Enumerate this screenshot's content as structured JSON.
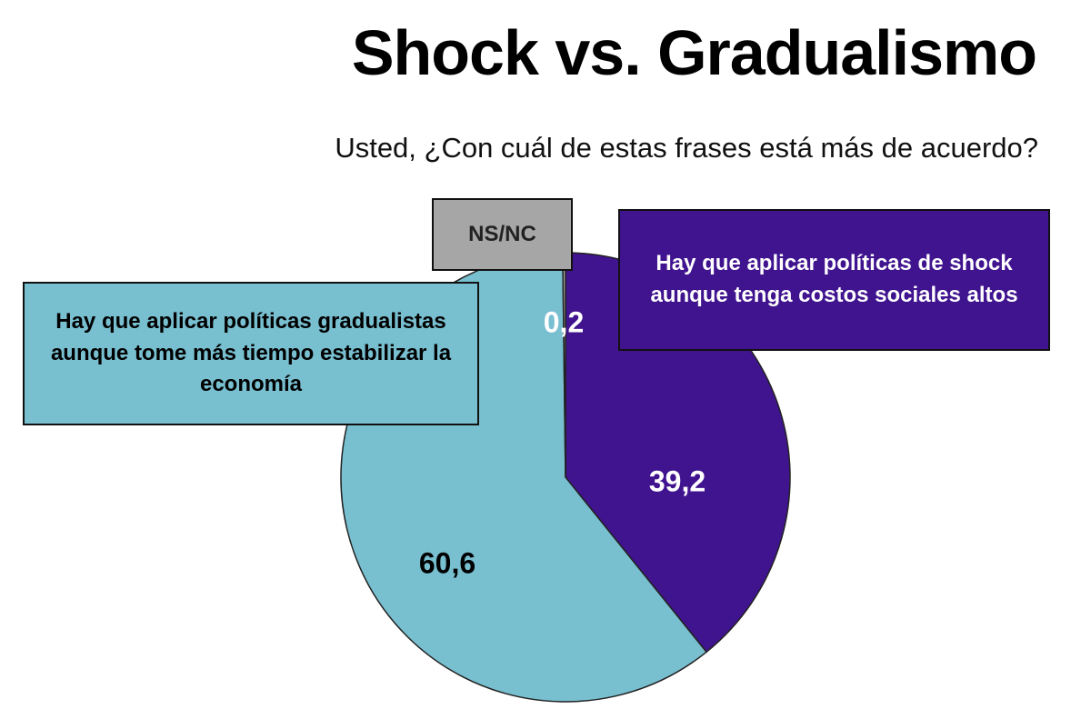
{
  "chart_data": {
    "type": "pie",
    "title": "Shock vs. Gradualismo",
    "subtitle": "Usted, ¿Con cuál de estas frases está más de acuerdo?",
    "categories": [
      "Hay que aplicar políticas de shock aunque tenga costos sociales altos",
      "Hay que aplicar políticas gradualistas aunque tome más tiempo estabilizar la economía",
      "NS/NC"
    ],
    "values": [
      39.2,
      60.6,
      0.2
    ],
    "value_labels": [
      "39,2",
      "60,6",
      "0,2"
    ],
    "colors": [
      "#40138f",
      "#78bfd0",
      "#a6a6a6"
    ]
  }
}
